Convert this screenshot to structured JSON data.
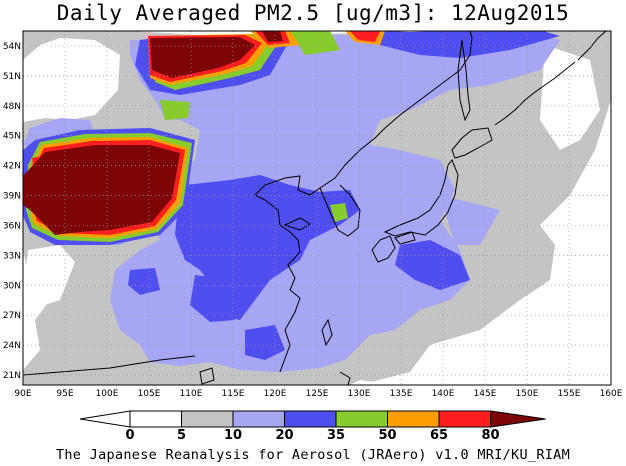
{
  "title": "Daily Averaged PM2.5 [ug/m3]: 12Aug2015",
  "footer": "The Japanese Reanalysis for Aerosol (JRAero) v1.0 MRI/KU_RIAM",
  "lon_labels": [
    "90E",
    "95E",
    "100E",
    "105E",
    "110E",
    "115E",
    "120E",
    "125E",
    "130E",
    "135E",
    "140E",
    "145E",
    "150E",
    "155E",
    "160E"
  ],
  "lat_labels": [
    "54N",
    "51N",
    "48N",
    "45N",
    "42N",
    "39N",
    "36N",
    "33N",
    "30N",
    "27N",
    "24N",
    "21N"
  ],
  "colorbar": {
    "labels": [
      "0",
      "5",
      "10",
      "20",
      "35",
      "50",
      "65",
      "80"
    ],
    "colors": [
      "#ffffff",
      "#ffffff",
      "#c4c4c4",
      "#a6a6f4",
      "#4f4ff0",
      "#86cc2c",
      "#ff9e00",
      "#ff1f1f",
      "#7d0505"
    ]
  },
  "colors": {
    "light_gray": "#c4c4c4",
    "light_purple": "#a6a6f4",
    "blue": "#4f4ff0",
    "green": "#86cc2c",
    "orange": "#ff9e00",
    "red": "#ff1f1f",
    "maroon": "#7d0505"
  }
}
